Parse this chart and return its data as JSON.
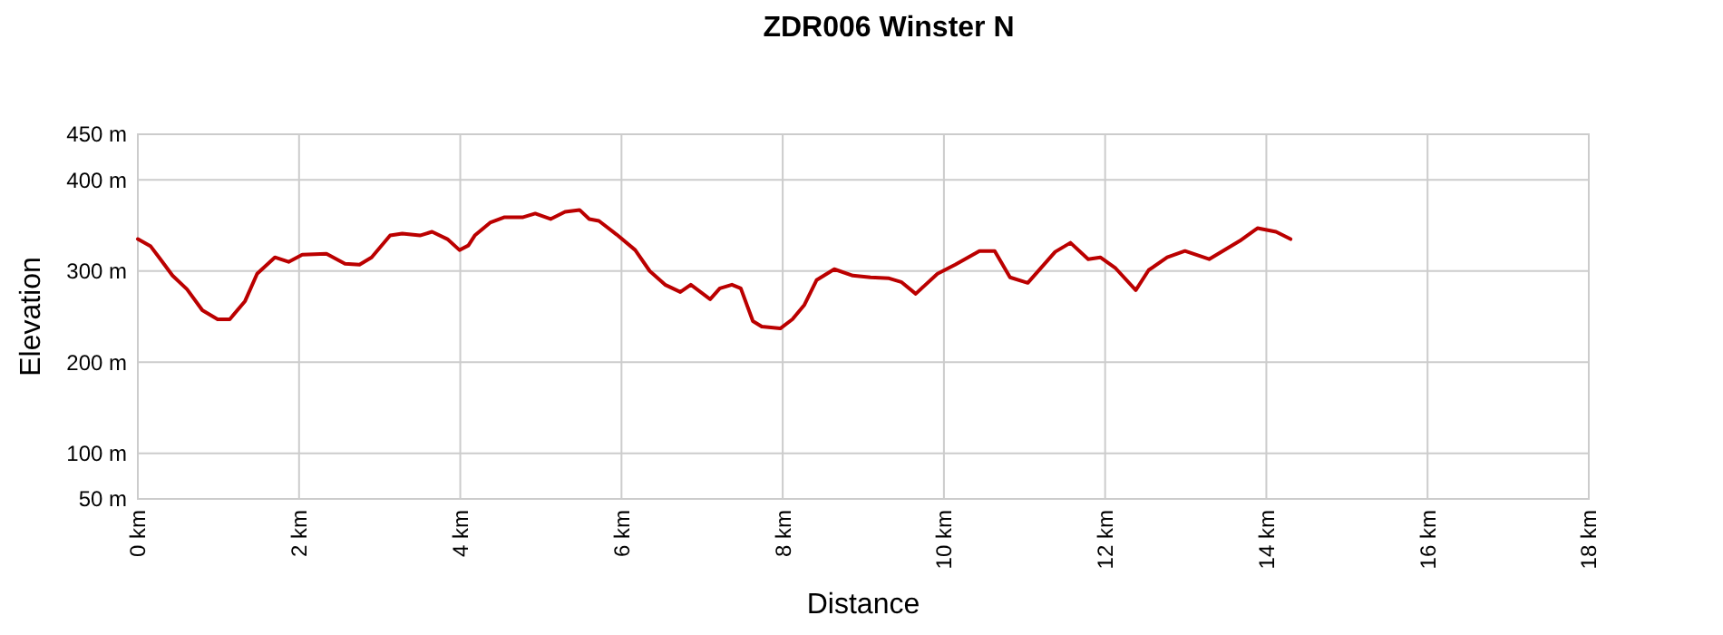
{
  "chart_data": {
    "type": "line",
    "title": "ZDR006 Winster N",
    "xlabel": "Distance",
    "ylabel": "Elevation",
    "xlim": [
      0,
      18
    ],
    "ylim": [
      50,
      450
    ],
    "xticks": [
      {
        "value": 0,
        "label": "0 km"
      },
      {
        "value": 2,
        "label": "2 km"
      },
      {
        "value": 4,
        "label": "4 km"
      },
      {
        "value": 6,
        "label": "6 km"
      },
      {
        "value": 8,
        "label": "8 km"
      },
      {
        "value": 10,
        "label": "10 km"
      },
      {
        "value": 12,
        "label": "12 km"
      },
      {
        "value": 14,
        "label": "14 km"
      },
      {
        "value": 16,
        "label": "16 km"
      },
      {
        "value": 18,
        "label": "18 km"
      }
    ],
    "yticks": [
      {
        "value": 50,
        "label": "50 m"
      },
      {
        "value": 100,
        "label": "100 m"
      },
      {
        "value": 200,
        "label": "200 m"
      },
      {
        "value": 300,
        "label": "300 m"
      },
      {
        "value": 400,
        "label": "400 m"
      },
      {
        "value": 450,
        "label": "450 m"
      }
    ],
    "grid": true,
    "series": [
      {
        "color": "#bb0000",
        "x": [
          0,
          0.16,
          0.28,
          0.43,
          0.61,
          0.8,
          0.99,
          1.14,
          1.33,
          1.48,
          1.7,
          1.87,
          2.04,
          2.34,
          2.57,
          2.75,
          2.9,
          3.13,
          3.28,
          3.5,
          3.65,
          3.84,
          3.99,
          4.1,
          4.18,
          4.37,
          4.55,
          4.78,
          4.93,
          5.12,
          5.3,
          5.48,
          5.6,
          5.72,
          5.94,
          6.17,
          6.35,
          6.54,
          6.73,
          6.86,
          7.1,
          7.22,
          7.37,
          7.48,
          7.63,
          7.74,
          7.97,
          8.12,
          8.27,
          8.42,
          8.64,
          8.87,
          9.09,
          9.32,
          9.47,
          9.65,
          9.92,
          10.14,
          10.44,
          10.63,
          10.82,
          11.04,
          11.38,
          11.57,
          11.79,
          11.94,
          12.13,
          12.38,
          12.54,
          12.77,
          12.99,
          13.29,
          13.67,
          13.89,
          14.12,
          14.3
        ],
        "values": [
          335,
          327,
          313,
          295,
          280,
          257,
          247,
          247,
          267,
          297,
          315,
          310,
          318,
          319,
          308,
          307,
          315,
          339,
          341,
          339,
          343,
          335,
          323,
          328,
          339,
          353,
          359,
          359,
          363,
          357,
          365,
          367,
          357,
          355,
          340,
          323,
          300,
          285,
          277,
          285,
          269,
          281,
          285,
          281,
          245,
          239,
          237,
          247,
          263,
          290,
          302,
          295,
          293,
          292,
          288,
          275,
          297,
          307,
          322,
          322,
          293,
          287,
          321,
          331,
          313,
          315,
          303,
          279,
          301,
          315,
          322,
          313,
          333,
          347,
          343,
          335
        ]
      }
    ]
  }
}
